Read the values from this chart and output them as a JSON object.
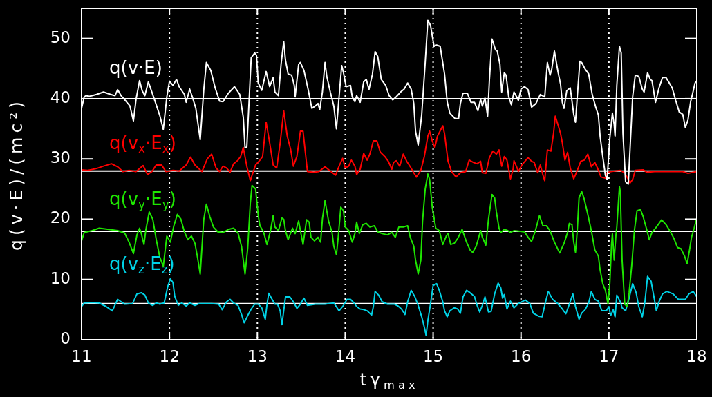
{
  "chart_data": {
    "type": "line",
    "xlabel": "tγ$_{max}$",
    "ylabel": "q(v·E)/(mc²)",
    "xlim": [
      11,
      18
    ],
    "xticks": [
      11,
      12,
      13,
      14,
      15,
      16,
      17,
      18
    ],
    "ylim": [
      0,
      55
    ],
    "yticks": [
      0,
      10,
      20,
      30,
      40,
      50
    ],
    "grid": "x",
    "marker": "none",
    "ref_lines": [
      {
        "axis": "y",
        "value": 40,
        "color": "#ffffff"
      },
      {
        "axis": "y",
        "value": 28,
        "color": "#ffffff"
      },
      {
        "axis": "y",
        "value": 18,
        "color": "#ffffff"
      },
      {
        "axis": "y",
        "value": 6,
        "color": "#ffffff"
      }
    ],
    "series": [
      {
        "name": "q(v·E)",
        "color": "#ffffff",
        "x": [
          11.0,
          11.03,
          11.05,
          11.09,
          11.17,
          11.25,
          11.33,
          11.38,
          11.41,
          11.45,
          11.51,
          11.55,
          11.59,
          11.62,
          11.66,
          11.69,
          11.72,
          11.76,
          11.8,
          11.84,
          11.89,
          11.93,
          11.97,
          12.0,
          12.04,
          12.08,
          12.11,
          12.17,
          12.19,
          12.23,
          12.26,
          12.3,
          12.35,
          12.39,
          12.42,
          12.47,
          12.52,
          12.57,
          12.61,
          12.67,
          12.74,
          12.8,
          12.84,
          12.86,
          12.88,
          12.93,
          12.97,
          12.99,
          13.01,
          13.05,
          13.1,
          13.14,
          13.18,
          13.2,
          13.24,
          13.27,
          13.3,
          13.32,
          13.35,
          13.39,
          13.42,
          13.43,
          13.47,
          13.49,
          13.53,
          13.58,
          13.62,
          13.66,
          13.69,
          13.71,
          13.74,
          13.77,
          13.79,
          13.83,
          13.87,
          13.9,
          13.93,
          13.96,
          13.98,
          14.01,
          14.06,
          14.08,
          14.11,
          14.13,
          14.17,
          14.21,
          14.24,
          14.27,
          14.31,
          14.34,
          14.37,
          14.41,
          14.46,
          14.5,
          14.54,
          14.58,
          14.63,
          14.67,
          14.71,
          14.75,
          14.78,
          14.8,
          14.83,
          14.87,
          14.91,
          14.94,
          14.97,
          15.01,
          15.04,
          15.08,
          15.13,
          15.16,
          15.19,
          15.25,
          15.29,
          15.31,
          15.34,
          15.39,
          15.43,
          15.47,
          15.51,
          15.54,
          15.56,
          15.59,
          15.62,
          15.64,
          15.67,
          15.71,
          15.73,
          15.76,
          15.78,
          15.81,
          15.83,
          15.86,
          15.89,
          15.92,
          15.95,
          15.97,
          16.0,
          16.04,
          16.08,
          16.12,
          16.17,
          16.22,
          16.27,
          16.3,
          16.33,
          16.35,
          16.38,
          16.42,
          16.45,
          16.47,
          16.49,
          16.52,
          16.56,
          16.6,
          16.62,
          16.64,
          16.67,
          16.69,
          16.73,
          16.77,
          16.81,
          16.85,
          16.88,
          16.9,
          16.93,
          16.96,
          16.98,
          17.01,
          17.04,
          17.06,
          17.07,
          17.09,
          17.12,
          17.14,
          17.16,
          17.19,
          17.22,
          17.24,
          17.27,
          17.3,
          17.34,
          17.38,
          17.4,
          17.44,
          17.47,
          17.49,
          17.53,
          17.57,
          17.61,
          17.65,
          17.72,
          17.76,
          17.8,
          17.84,
          17.87,
          17.9,
          17.93,
          17.95,
          17.98,
          18.0
        ],
        "values": [
          38.4,
          40.3,
          40.5,
          40.4,
          40.7,
          41.1,
          40.7,
          40.5,
          41.5,
          40.5,
          39.5,
          38.8,
          36.3,
          39.9,
          43.0,
          41.3,
          40.5,
          42.8,
          41.1,
          39.4,
          37.2,
          34.9,
          40.3,
          42.9,
          42.2,
          43.2,
          42.0,
          40.7,
          39.4,
          41.6,
          40.3,
          38.4,
          33.2,
          41.4,
          46.0,
          44.7,
          41.8,
          39.6,
          39.5,
          40.9,
          42.0,
          40.7,
          36.9,
          31.9,
          31.9,
          46.8,
          47.6,
          47.2,
          42.6,
          41.4,
          44.5,
          42.0,
          43.5,
          41.1,
          40.5,
          45.7,
          49.5,
          46.4,
          44.1,
          43.9,
          42.2,
          40.3,
          45.7,
          46.0,
          44.7,
          41.4,
          38.4,
          38.8,
          39.2,
          38.2,
          41.1,
          46.0,
          43.7,
          41.1,
          38.8,
          35.0,
          40.3,
          45.5,
          44.3,
          42.0,
          42.2,
          40.3,
          39.5,
          40.5,
          39.4,
          42.8,
          43.2,
          41.5,
          44.1,
          47.8,
          47.0,
          43.2,
          42.2,
          40.5,
          39.8,
          40.3,
          41.1,
          41.6,
          42.6,
          41.6,
          39.2,
          34.6,
          32.3,
          37.3,
          46.0,
          53.0,
          52.2,
          48.7,
          48.9,
          48.7,
          44.1,
          39.5,
          37.6,
          36.7,
          36.7,
          39.2,
          40.9,
          40.9,
          39.4,
          39.4,
          38.0,
          39.9,
          38.8,
          40.1,
          37.1,
          43.0,
          49.9,
          48.1,
          47.9,
          45.7,
          41.1,
          44.3,
          43.9,
          40.3,
          39.0,
          41.1,
          40.3,
          39.7,
          41.6,
          42.0,
          41.5,
          38.6,
          39.2,
          40.7,
          40.3,
          46.0,
          43.9,
          44.9,
          47.9,
          44.5,
          42.4,
          39.4,
          38.4,
          41.3,
          41.8,
          37.4,
          36.1,
          40.3,
          46.2,
          46.0,
          44.9,
          44.1,
          40.7,
          38.6,
          37.3,
          33.8,
          30.4,
          27.3,
          26.6,
          33.4,
          37.6,
          35.7,
          33.8,
          42.2,
          48.7,
          47.6,
          34.2,
          26.2,
          25.8,
          31.5,
          40.3,
          43.9,
          43.7,
          41.6,
          41.1,
          44.3,
          43.2,
          43.0,
          39.4,
          41.8,
          43.5,
          43.5,
          41.8,
          39.7,
          37.8,
          37.4,
          35.2,
          36.5,
          39.5,
          40.7,
          42.6,
          43.0
        ]
      },
      {
        "name": "q(v$_{x}$·E$_{x}$)",
        "color": "#ff0000",
        "x": [
          11.0,
          11.07,
          11.17,
          11.25,
          11.34,
          11.41,
          11.47,
          11.54,
          11.62,
          11.7,
          11.75,
          11.8,
          11.85,
          11.91,
          11.96,
          12.04,
          12.11,
          12.19,
          12.24,
          12.29,
          12.37,
          12.43,
          12.48,
          12.53,
          12.57,
          12.61,
          12.65,
          12.69,
          12.73,
          12.78,
          12.81,
          12.84,
          12.88,
          12.92,
          12.94,
          12.98,
          13.03,
          13.06,
          13.1,
          13.14,
          13.18,
          13.22,
          13.26,
          13.3,
          13.34,
          13.38,
          13.41,
          13.45,
          13.49,
          13.52,
          13.54,
          13.57,
          13.64,
          13.7,
          13.77,
          13.82,
          13.89,
          13.93,
          13.97,
          14.0,
          14.04,
          14.07,
          14.11,
          14.13,
          14.17,
          14.21,
          14.25,
          14.28,
          14.32,
          14.36,
          14.4,
          14.45,
          14.49,
          14.53,
          14.55,
          14.58,
          14.62,
          14.66,
          14.7,
          14.74,
          14.78,
          14.81,
          14.86,
          14.9,
          14.94,
          14.96,
          14.99,
          15.02,
          15.05,
          15.11,
          15.13,
          15.17,
          15.21,
          15.26,
          15.31,
          15.37,
          15.41,
          15.46,
          15.5,
          15.54,
          15.56,
          15.6,
          15.64,
          15.68,
          15.72,
          15.75,
          15.78,
          15.81,
          15.84,
          15.88,
          15.91,
          15.92,
          15.95,
          15.97,
          16.01,
          16.08,
          16.12,
          16.15,
          16.19,
          16.22,
          16.25,
          16.27,
          16.3,
          16.34,
          16.37,
          16.39,
          16.42,
          16.45,
          16.47,
          16.5,
          16.53,
          16.56,
          16.6,
          16.64,
          16.68,
          16.72,
          16.76,
          16.8,
          16.84,
          16.87,
          16.91,
          16.96,
          16.98,
          17.02,
          17.13,
          17.18,
          17.22,
          17.24,
          17.27,
          17.3,
          17.39,
          17.43,
          17.52,
          17.84,
          17.9,
          18.0
        ],
        "values": [
          28.2,
          28.1,
          28.4,
          28.8,
          29.2,
          28.7,
          27.9,
          28.1,
          27.9,
          28.9,
          27.4,
          27.9,
          29.0,
          29.0,
          27.9,
          28.1,
          28.0,
          29.0,
          30.3,
          29.0,
          27.9,
          30.0,
          30.8,
          28.5,
          27.9,
          28.8,
          28.5,
          27.8,
          29.2,
          29.8,
          30.4,
          31.9,
          28.8,
          26.4,
          27.3,
          29.0,
          29.8,
          30.4,
          36.1,
          32.7,
          29.0,
          28.5,
          32.7,
          38.0,
          33.8,
          31.5,
          28.8,
          30.4,
          34.6,
          34.6,
          31.9,
          27.9,
          27.8,
          27.9,
          28.7,
          28.1,
          27.3,
          28.8,
          30.1,
          28.5,
          28.8,
          29.8,
          28.8,
          27.4,
          28.3,
          30.9,
          29.8,
          30.8,
          33.0,
          33.0,
          31.1,
          30.4,
          29.6,
          28.3,
          29.4,
          29.7,
          28.8,
          30.8,
          29.6,
          28.7,
          27.7,
          27.0,
          28.1,
          30.4,
          33.8,
          34.6,
          33.0,
          31.9,
          33.8,
          35.5,
          34.2,
          29.6,
          27.9,
          27.0,
          27.7,
          27.9,
          29.8,
          29.4,
          29.2,
          29.6,
          27.7,
          27.6,
          30.2,
          31.3,
          30.8,
          31.5,
          28.8,
          30.4,
          29.8,
          26.7,
          28.3,
          29.7,
          28.7,
          27.9,
          29.0,
          30.2,
          29.6,
          29.4,
          27.7,
          29.0,
          27.3,
          26.4,
          31.5,
          31.3,
          34.2,
          37.1,
          35.7,
          34.2,
          32.7,
          29.8,
          31.1,
          28.5,
          26.7,
          28.1,
          29.6,
          29.8,
          30.8,
          28.7,
          29.4,
          28.5,
          27.0,
          26.8,
          27.7,
          27.9,
          28.1,
          27.7,
          26.6,
          26.0,
          26.6,
          28.1,
          28.2,
          27.8,
          27.9,
          27.9,
          27.6,
          27.9
        ]
      },
      {
        "name": "q(v$_{y}$·E$_{y}$)",
        "color": "#1ee600",
        "x": [
          11.0,
          11.03,
          11.12,
          11.2,
          11.31,
          11.41,
          11.49,
          11.54,
          11.59,
          11.63,
          11.66,
          11.68,
          11.71,
          11.73,
          11.77,
          11.81,
          11.85,
          11.89,
          11.93,
          11.97,
          12.01,
          12.05,
          12.09,
          12.13,
          12.17,
          12.21,
          12.25,
          12.29,
          12.32,
          12.35,
          12.39,
          12.42,
          12.46,
          12.5,
          12.55,
          12.61,
          12.67,
          12.73,
          12.78,
          12.82,
          12.86,
          12.89,
          12.92,
          12.94,
          12.98,
          13.01,
          13.03,
          13.07,
          13.11,
          13.15,
          13.18,
          13.2,
          13.24,
          13.28,
          13.3,
          13.32,
          13.35,
          13.4,
          13.43,
          13.47,
          13.49,
          13.52,
          13.56,
          13.59,
          13.61,
          13.65,
          13.69,
          13.72,
          13.74,
          13.77,
          13.81,
          13.85,
          13.87,
          13.9,
          13.92,
          13.95,
          13.98,
          14.0,
          14.04,
          14.08,
          14.11,
          14.13,
          14.16,
          14.2,
          14.24,
          14.28,
          14.33,
          14.37,
          14.42,
          14.48,
          14.53,
          14.57,
          14.61,
          14.66,
          14.71,
          14.74,
          14.78,
          14.8,
          14.83,
          14.86,
          14.88,
          14.91,
          14.94,
          14.96,
          14.99,
          15.03,
          15.07,
          15.11,
          15.15,
          15.17,
          15.2,
          15.24,
          15.28,
          15.33,
          15.38,
          15.42,
          15.45,
          15.49,
          15.54,
          15.56,
          15.6,
          15.63,
          15.67,
          15.7,
          15.72,
          15.75,
          15.77,
          15.81,
          15.85,
          15.88,
          15.92,
          16.04,
          16.08,
          16.12,
          16.16,
          16.21,
          16.25,
          16.29,
          16.33,
          16.38,
          16.44,
          16.49,
          16.53,
          16.55,
          16.58,
          16.6,
          16.62,
          16.64,
          16.66,
          16.69,
          16.72,
          16.76,
          16.8,
          16.84,
          16.88,
          16.9,
          16.93,
          16.96,
          16.99,
          17.01,
          17.03,
          17.04,
          17.06,
          17.08,
          17.09,
          17.12,
          17.13,
          17.15,
          17.18,
          17.21,
          17.23,
          17.26,
          17.29,
          17.32,
          17.36,
          17.39,
          17.43,
          17.46,
          17.49,
          17.53,
          17.6,
          17.65,
          17.7,
          17.74,
          17.78,
          17.82,
          17.86,
          17.89,
          17.92,
          17.94,
          17.97,
          18.0
        ],
        "values": [
          16.4,
          17.8,
          18.1,
          18.5,
          18.3,
          18.1,
          17.7,
          16.2,
          14.3,
          17.4,
          18.5,
          17.6,
          15.8,
          18.1,
          21.2,
          20.0,
          16.6,
          13.7,
          12.2,
          17.2,
          16.2,
          18.9,
          20.8,
          20.0,
          17.9,
          16.6,
          17.2,
          16.0,
          13.6,
          10.9,
          19.9,
          22.5,
          20.4,
          18.7,
          17.9,
          17.8,
          18.3,
          18.5,
          17.7,
          15.5,
          10.9,
          15.1,
          22.7,
          25.6,
          25.0,
          20.6,
          18.9,
          17.9,
          15.8,
          18.1,
          20.6,
          18.7,
          18.1,
          20.2,
          20.0,
          18.1,
          16.6,
          18.5,
          17.6,
          19.7,
          18.1,
          15.8,
          19.9,
          19.5,
          17.0,
          16.4,
          17.0,
          16.2,
          20.0,
          23.1,
          19.7,
          17.8,
          15.5,
          14.1,
          17.0,
          22.0,
          21.4,
          18.7,
          18.1,
          16.2,
          17.6,
          19.5,
          17.6,
          19.1,
          19.3,
          18.7,
          18.9,
          17.9,
          17.6,
          17.4,
          17.8,
          17.0,
          18.7,
          18.7,
          18.9,
          17.0,
          15.5,
          13.2,
          10.9,
          13.2,
          19.7,
          25.0,
          27.5,
          26.6,
          22.0,
          18.5,
          18.1,
          15.8,
          17.2,
          17.6,
          15.8,
          16.0,
          16.8,
          18.3,
          16.2,
          14.9,
          14.5,
          15.5,
          18.1,
          17.0,
          15.7,
          20.0,
          24.1,
          23.5,
          21.2,
          18.5,
          17.8,
          18.3,
          18.1,
          17.8,
          18.1,
          17.9,
          17.0,
          16.3,
          17.9,
          20.6,
          18.9,
          18.9,
          18.1,
          16.2,
          14.4,
          16.0,
          17.8,
          19.3,
          19.1,
          16.2,
          14.5,
          18.1,
          23.5,
          24.6,
          23.3,
          20.8,
          18.1,
          14.9,
          13.9,
          11.6,
          9.3,
          8.2,
          5.9,
          9.3,
          15.8,
          17.6,
          13.2,
          17.4,
          18.7,
          25.4,
          24.6,
          13.2,
          5.9,
          5.5,
          7.8,
          12.4,
          18.1,
          21.4,
          21.6,
          20.4,
          18.3,
          16.6,
          17.8,
          18.5,
          19.9,
          19.1,
          17.9,
          16.8,
          15.3,
          15.1,
          13.9,
          12.6,
          15.1,
          17.0,
          18.5,
          20.2
        ]
      },
      {
        "name": "q(v$_{z}$·E$_{z}$)",
        "color": "#00d2e6",
        "x": [
          11.0,
          11.03,
          11.12,
          11.2,
          11.28,
          11.35,
          11.41,
          11.45,
          11.49,
          11.58,
          11.63,
          11.68,
          11.72,
          11.76,
          11.81,
          11.85,
          11.89,
          11.94,
          11.98,
          12.01,
          12.04,
          12.06,
          12.1,
          12.14,
          12.19,
          12.23,
          12.29,
          12.34,
          12.48,
          12.56,
          12.6,
          12.65,
          12.69,
          12.73,
          12.78,
          12.82,
          12.85,
          12.89,
          12.93,
          12.97,
          13.01,
          13.05,
          13.09,
          13.11,
          13.13,
          13.16,
          13.2,
          13.23,
          13.26,
          13.28,
          13.32,
          13.37,
          13.41,
          13.45,
          13.49,
          13.53,
          13.57,
          13.66,
          13.77,
          13.87,
          13.93,
          13.98,
          14.02,
          14.06,
          14.1,
          14.13,
          14.17,
          14.21,
          14.25,
          14.3,
          14.32,
          14.34,
          14.38,
          14.42,
          14.48,
          14.56,
          14.6,
          14.64,
          14.68,
          14.71,
          14.75,
          14.79,
          14.83,
          14.87,
          14.9,
          14.92,
          14.94,
          14.97,
          15.0,
          15.04,
          15.07,
          15.11,
          15.13,
          15.16,
          15.19,
          15.24,
          15.28,
          15.31,
          15.34,
          15.38,
          15.42,
          15.47,
          15.5,
          15.53,
          15.56,
          15.59,
          15.63,
          15.66,
          15.7,
          15.74,
          15.77,
          15.79,
          15.81,
          15.84,
          15.88,
          15.92,
          15.97,
          16.05,
          16.1,
          16.14,
          16.2,
          16.24,
          16.28,
          16.31,
          16.36,
          16.41,
          16.46,
          16.51,
          16.55,
          16.59,
          16.62,
          16.66,
          16.69,
          16.73,
          16.77,
          16.8,
          16.84,
          16.88,
          16.92,
          16.97,
          17.0,
          17.02,
          17.05,
          17.07,
          17.09,
          17.13,
          17.15,
          17.19,
          17.23,
          17.27,
          17.31,
          17.34,
          17.38,
          17.41,
          17.44,
          17.48,
          17.52,
          17.54,
          17.57,
          17.61,
          17.66,
          17.73,
          17.79,
          17.87,
          17.91,
          17.96,
          18.0
        ],
        "values": [
          5.5,
          6.1,
          6.2,
          6.1,
          5.5,
          4.8,
          6.7,
          6.3,
          5.9,
          6.0,
          7.6,
          7.8,
          7.4,
          6.1,
          5.7,
          6.1,
          5.9,
          6.1,
          8.8,
          10.1,
          9.5,
          7.2,
          5.7,
          6.1,
          5.6,
          6.1,
          5.7,
          6.0,
          6.0,
          5.9,
          5.0,
          6.3,
          6.7,
          6.1,
          5.7,
          4.2,
          2.8,
          4.0,
          5.1,
          5.9,
          5.9,
          5.3,
          3.4,
          5.9,
          7.7,
          6.9,
          5.9,
          5.9,
          4.8,
          2.5,
          7.1,
          7.1,
          6.3,
          5.2,
          5.9,
          6.9,
          5.7,
          5.9,
          5.9,
          6.1,
          4.8,
          5.7,
          6.7,
          6.7,
          6.1,
          5.5,
          5.1,
          5.0,
          4.8,
          4.1,
          5.5,
          8.0,
          7.4,
          6.3,
          5.9,
          5.9,
          5.6,
          5.1,
          4.2,
          6.3,
          8.2,
          7.2,
          5.7,
          3.8,
          2.1,
          0.7,
          3.2,
          5.9,
          9.0,
          9.3,
          8.2,
          6.3,
          4.8,
          3.8,
          4.8,
          5.3,
          5.1,
          4.4,
          7.1,
          8.2,
          7.8,
          7.2,
          5.7,
          4.6,
          5.7,
          7.1,
          4.6,
          4.7,
          7.6,
          9.4,
          8.6,
          6.9,
          7.5,
          5.1,
          6.4,
          5.3,
          6.0,
          6.6,
          6.0,
          4.4,
          3.9,
          3.8,
          6.3,
          8.0,
          6.7,
          6.1,
          5.3,
          4.3,
          5.9,
          7.6,
          5.5,
          3.4,
          4.4,
          5.0,
          6.1,
          8.0,
          6.7,
          6.4,
          4.8,
          4.8,
          5.5,
          4.0,
          5.0,
          3.8,
          7.4,
          6.3,
          5.3,
          4.8,
          6.9,
          9.3,
          7.8,
          5.5,
          3.8,
          6.3,
          10.5,
          9.7,
          6.5,
          4.8,
          6.3,
          7.6,
          8.0,
          7.6,
          6.7,
          6.7,
          7.6,
          8.0,
          7.1
        ]
      }
    ]
  }
}
